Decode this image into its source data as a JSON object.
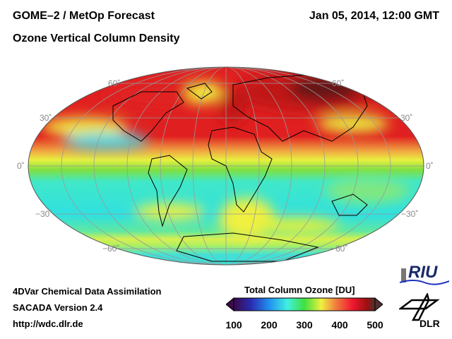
{
  "header": {
    "title": "GOME–2 / MetOp Forecast",
    "subtitle": "Ozone Vertical Column Density",
    "datetime": "Jan 05, 2014, 12:00 GMT"
  },
  "map": {
    "projection": "Hammer/Mollweide world",
    "lat_labels": {
      "n60": "60˚",
      "n30": "30˚",
      "eq": "0˚",
      "s30": "−30˚",
      "s60": "−60˚"
    }
  },
  "footer": {
    "line1": "4DVar Chemical Data Assimilation",
    "line2": "SACADA Version 2.4",
    "line3": "http://wdc.dlr.de"
  },
  "colorbar": {
    "title": "Total Column Ozone [DU]",
    "ticks": [
      "100",
      "200",
      "300",
      "400",
      "500"
    ],
    "range": [
      100,
      500
    ],
    "colors": [
      "#3a0a4a",
      "#2a2ab0",
      "#2090f0",
      "#40f0e0",
      "#40e040",
      "#f0f040",
      "#f08040",
      "#f01830",
      "#a01010",
      "#503030"
    ]
  },
  "logos": {
    "riu": "RIU",
    "dlr": "DLR"
  }
}
